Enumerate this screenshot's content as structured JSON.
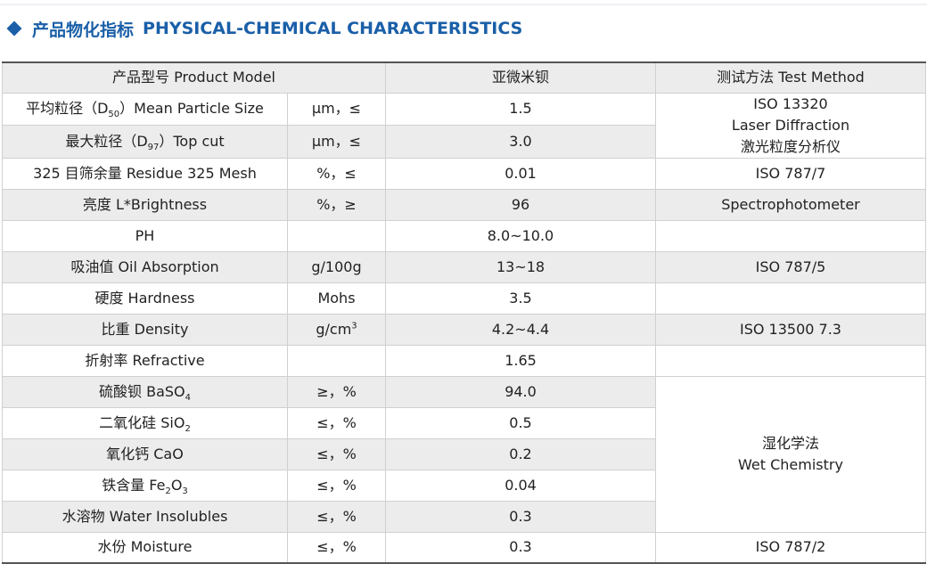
{
  "section": {
    "title_cn": "产品物化指标",
    "title_en": "PHYSICAL-CHEMICAL CHARACTERISTICS"
  },
  "table": {
    "header": {
      "model": "产品型号 Product Model",
      "product": "亚微米钡",
      "method": "测试方法 Test Method"
    },
    "rows": [
      {
        "label_pre": "平均粒径（D",
        "label_sub": "50",
        "label_post": "）Mean Particle Size",
        "unit": "μm，≤",
        "value": "1.5"
      },
      {
        "label_pre": "最大粒径（D",
        "label_sub": "97",
        "label_post": "）Top cut",
        "unit": "μm，≤",
        "value": "3.0"
      },
      {
        "label": "325 目筛余量 Residue 325 Mesh",
        "unit": "%，≤",
        "value": "0.01",
        "method": "ISO 787/7"
      },
      {
        "label": "亮度 L*Brightness",
        "unit": "%，≥",
        "value": "96",
        "method": "Spectrophotometer"
      },
      {
        "label": "PH",
        "unit": "",
        "value": "8.0~10.0",
        "method": ""
      },
      {
        "label": "吸油值 Oil Absorption",
        "unit": "g/100g",
        "value": "13~18",
        "method": "ISO 787/5"
      },
      {
        "label": "硬度 Hardness",
        "unit": "Mohs",
        "value": "3.5",
        "method": ""
      },
      {
        "label": "比重 Density",
        "unit_pre": "g/cm",
        "unit_sup": "3",
        "value": "4.2~4.4",
        "method": "ISO 13500 7.3"
      },
      {
        "label": "折射率 Refractive",
        "unit": "",
        "value": "1.65",
        "method": ""
      },
      {
        "label_pre": "硫酸钡 BaSO",
        "label_sub": "4",
        "unit": "≥，%",
        "value": "94.0"
      },
      {
        "label_pre": "二氧化硅 SiO",
        "label_sub": "2",
        "unit": "≤，%",
        "value": "0.5"
      },
      {
        "label": "氧化钙 CaO",
        "unit": "≤，%",
        "value": "0.2"
      },
      {
        "label_pre": "铁含量 Fe",
        "label_sub": "2",
        "label_mid": "O",
        "label_sub2": "3",
        "unit": "≤，%",
        "value": "0.04"
      },
      {
        "label": "水溶物 Water Insolubles",
        "unit": "≤，%",
        "value": "0.3"
      },
      {
        "label": "水份 Moisture",
        "unit": "≤，%",
        "value": "0.3",
        "method": "ISO 787/2"
      }
    ],
    "method_laser": {
      "line1": "ISO 13320",
      "line2": "Laser Diffraction",
      "line3": "激光粒度分析仪"
    },
    "method_wet": {
      "line1": "湿化学法",
      "line2": "Wet Chemistry"
    }
  }
}
